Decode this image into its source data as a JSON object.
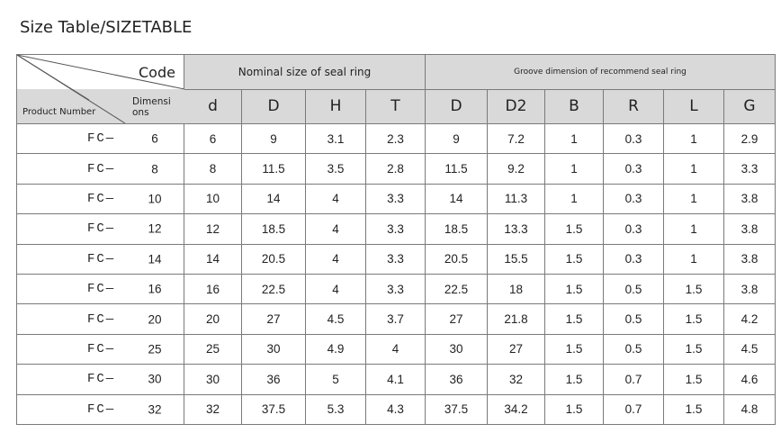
{
  "page": {
    "title": "Size Table/SIZETABLE"
  },
  "table": {
    "corner": {
      "code_label": "Code",
      "dimensions_label_line1": "Dimensi",
      "dimensions_label_line2": "ons",
      "product_label": "Product Number"
    },
    "group_headers": [
      "Nominal size of seal ring",
      "Groove dimension of recommend seal ring"
    ],
    "columns": [
      "d",
      "D",
      "H",
      "T",
      "D",
      "D2",
      "B",
      "R",
      "L",
      "G"
    ],
    "product_prefix": "FC—",
    "rows": [
      {
        "code": "6",
        "values": [
          "6",
          "9",
          "3.1",
          "2.3",
          "9",
          "7.2",
          "1",
          "0.3",
          "1",
          "2.9"
        ]
      },
      {
        "code": "8",
        "values": [
          "8",
          "11.5",
          "3.5",
          "2.8",
          "11.5",
          "9.2",
          "1",
          "0.3",
          "1",
          "3.3"
        ]
      },
      {
        "code": "10",
        "values": [
          "10",
          "14",
          "4",
          "3.3",
          "14",
          "11.3",
          "1",
          "0.3",
          "1",
          "3.8"
        ]
      },
      {
        "code": "12",
        "values": [
          "12",
          "18.5",
          "4",
          "3.3",
          "18.5",
          "13.3",
          "1.5",
          "0.3",
          "1",
          "3.8"
        ]
      },
      {
        "code": "14",
        "values": [
          "14",
          "20.5",
          "4",
          "3.3",
          "20.5",
          "15.5",
          "1.5",
          "0.3",
          "1",
          "3.8"
        ]
      },
      {
        "code": "16",
        "values": [
          "16",
          "22.5",
          "4",
          "3.3",
          "22.5",
          "18",
          "1.5",
          "0.5",
          "1.5",
          "3.8"
        ]
      },
      {
        "code": "20",
        "values": [
          "20",
          "27",
          "4.5",
          "3.7",
          "27",
          "21.8",
          "1.5",
          "0.5",
          "1.5",
          "4.2"
        ]
      },
      {
        "code": "25",
        "values": [
          "25",
          "30",
          "4.9",
          "4",
          "30",
          "27",
          "1.5",
          "0.5",
          "1.5",
          "4.5"
        ]
      },
      {
        "code": "30",
        "values": [
          "30",
          "36",
          "5",
          "4.1",
          "36",
          "32",
          "1.5",
          "0.7",
          "1.5",
          "4.6"
        ]
      },
      {
        "code": "32",
        "values": [
          "32",
          "37.5",
          "5.3",
          "4.3",
          "37.5",
          "34.2",
          "1.5",
          "0.7",
          "1.5",
          "4.8"
        ]
      }
    ]
  }
}
